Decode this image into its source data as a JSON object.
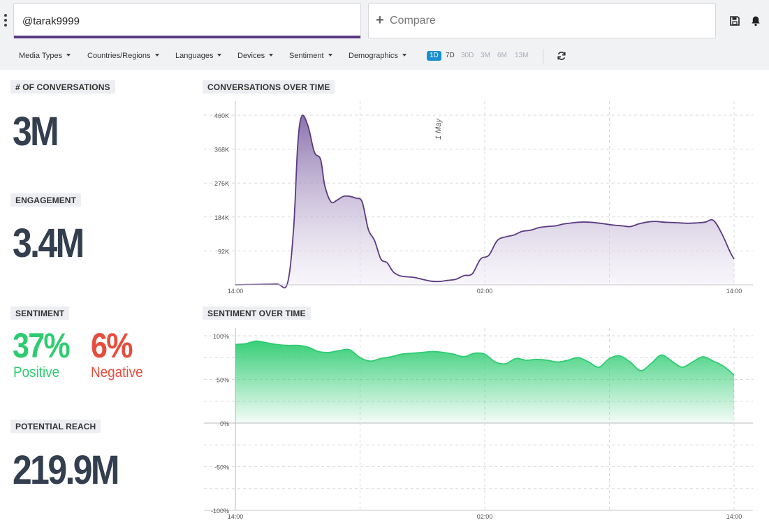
{
  "search": {
    "value": "@tarak9999",
    "compare_label": "Compare"
  },
  "filters": [
    "Media Types",
    "Countries/Regions",
    "Languages",
    "Devices",
    "Sentiment",
    "Demographics"
  ],
  "ranges": [
    "1D",
    "7D",
    "30D",
    "3M",
    "6M",
    "13M"
  ],
  "active_range": "1D",
  "metrics": {
    "conversations": {
      "label": "# OF CONVERSATIONS",
      "value": "3M"
    },
    "engagement": {
      "label": "ENGAGEMENT",
      "value": "3.4M"
    },
    "sentiment": {
      "label": "SENTIMENT",
      "positive_value": "37%",
      "positive_label": "Positive",
      "negative_value": "6%",
      "negative_label": "Negative"
    },
    "reach": {
      "label": "POTENTIAL REACH",
      "value": "219.9M"
    }
  },
  "colors": {
    "accent": "#5b3a82",
    "positive": "#2ecc71",
    "negative": "#e74c3c",
    "active_range": "#1a8fd0",
    "big_number": "#333e4f"
  },
  "icons": {
    "menu": "kebab-icon",
    "save": "save-icon",
    "notify": "bell-icon",
    "refresh": "refresh-icon",
    "compare": "plus-icon"
  },
  "chart_data": [
    {
      "type": "area",
      "title": "CONVERSATIONS OVER TIME",
      "x_ticks": [
        "14:00",
        "02:00",
        "14:00"
      ],
      "y_ticks": [
        "92K",
        "184K",
        "276K",
        "368K",
        "460K"
      ],
      "ylim": [
        0,
        460000
      ],
      "annotation": "1 May",
      "grid": true,
      "color": "#5b3a82",
      "series": [
        {
          "x_hours": [
            0,
            1,
            2,
            2.5,
            2.8,
            3,
            3.2,
            3.5,
            3.8,
            4.1,
            4.3,
            4.6,
            4.9,
            5.2,
            5.5,
            5.8,
            6.1,
            6.4,
            6.7,
            7,
            7.3,
            7.6,
            7.9,
            8.2,
            8.6,
            9,
            9.4,
            9.8,
            10.2,
            10.6,
            11,
            11.4,
            11.8,
            12.2,
            12.6,
            13,
            13.4,
            13.8,
            14.2,
            14.6,
            15,
            15.4,
            15.8,
            16.2,
            16.6,
            17,
            17.4,
            17.8,
            18.2,
            18.6,
            19,
            19.4,
            19.8,
            20.2,
            20.6,
            21,
            21.4,
            21.8,
            22.2,
            22.6,
            23,
            23.4,
            23.8,
            24
          ],
          "values": [
            0,
            1000,
            2000,
            3000,
            150000,
            380000,
            458000,
            430000,
            360000,
            340000,
            270000,
            225000,
            230000,
            240000,
            240000,
            235000,
            225000,
            150000,
            120000,
            70000,
            60000,
            35000,
            25000,
            22000,
            20000,
            15000,
            10000,
            9000,
            12000,
            15000,
            25000,
            30000,
            70000,
            80000,
            120000,
            130000,
            135000,
            145000,
            148000,
            155000,
            158000,
            160000,
            165000,
            168000,
            170000,
            170000,
            168000,
            165000,
            162000,
            160000,
            158000,
            165000,
            170000,
            172000,
            170000,
            169000,
            168000,
            167000,
            168000,
            170000,
            175000,
            140000,
            90000,
            70000
          ]
        }
      ]
    },
    {
      "type": "area",
      "title": "SENTIMENT OVER TIME",
      "x_ticks": [
        "14:00",
        "02:00",
        "14:00"
      ],
      "y_ticks": [
        "100%",
        "50%",
        "0%",
        "-50%",
        "-100%"
      ],
      "ylim": [
        -100,
        100
      ],
      "grid": true,
      "color": "#2ecc71",
      "series": [
        {
          "x_hours": [
            0,
            0.5,
            1,
            1.5,
            2,
            2.5,
            3,
            3.5,
            4,
            4.5,
            5,
            5.5,
            6,
            6.5,
            7,
            7.5,
            8,
            8.5,
            9,
            9.5,
            10,
            10.5,
            11,
            11.5,
            12,
            12.5,
            13,
            13.5,
            14,
            14.5,
            15,
            15.5,
            16,
            16.5,
            17,
            17.5,
            18,
            18.5,
            19,
            19.5,
            20,
            20.5,
            21,
            21.5,
            22,
            22.5,
            23,
            23.5,
            24
          ],
          "values": [
            90,
            91,
            94,
            92,
            90,
            89,
            89,
            87,
            82,
            81,
            83,
            84,
            75,
            71,
            74,
            76,
            79,
            80,
            81,
            82,
            81,
            79,
            76,
            80,
            79,
            70,
            68,
            74,
            72,
            73,
            72,
            70,
            72,
            75,
            70,
            64,
            74,
            77,
            70,
            60,
            68,
            78,
            71,
            64,
            70,
            76,
            71,
            65,
            55
          ]
        }
      ]
    }
  ]
}
